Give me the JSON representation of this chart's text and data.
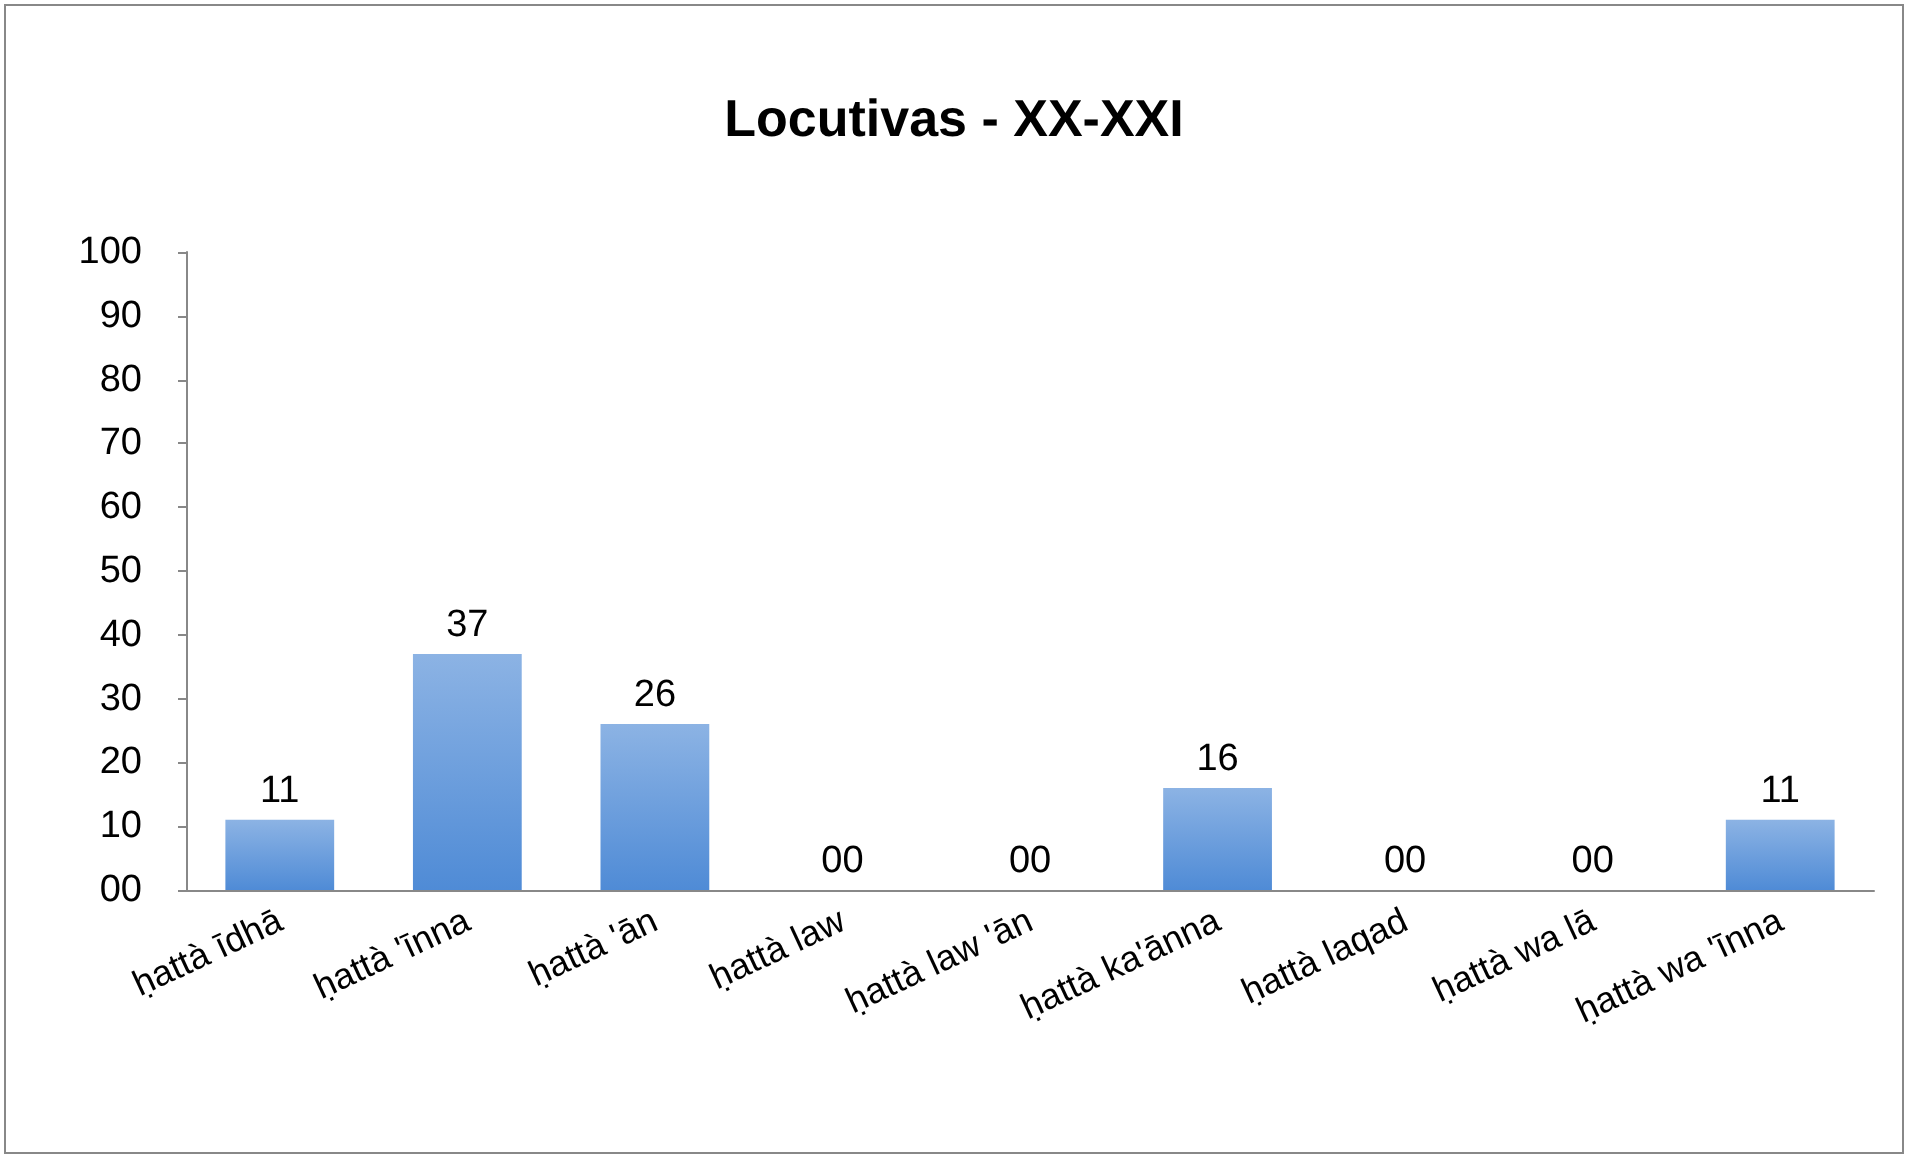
{
  "chart_data": {
    "type": "bar",
    "title": "Locutivas - XX-XXI",
    "categories": [
      "ḥattà īdhā",
      "ḥattà 'īnna",
      "ḥattà 'ān",
      "ḥattà law",
      "ḥattà law 'ān",
      "ḥattà ka'ānna",
      "ḥattà laqad",
      "ḥattà wa lā",
      "ḥattà wa 'īnna"
    ],
    "values": [
      11,
      37,
      26,
      0,
      0,
      16,
      0,
      0,
      11
    ],
    "value_labels": [
      "11",
      "37",
      "26",
      "00",
      "00",
      "16",
      "00",
      "00",
      "11"
    ],
    "color": "#4f8bd6",
    "ylim": [
      0,
      100
    ],
    "yticks": [
      {
        "value": 0,
        "label": "00"
      },
      10,
      20,
      30,
      40,
      50,
      60,
      70,
      80,
      90,
      100
    ],
    "grid": false
  }
}
